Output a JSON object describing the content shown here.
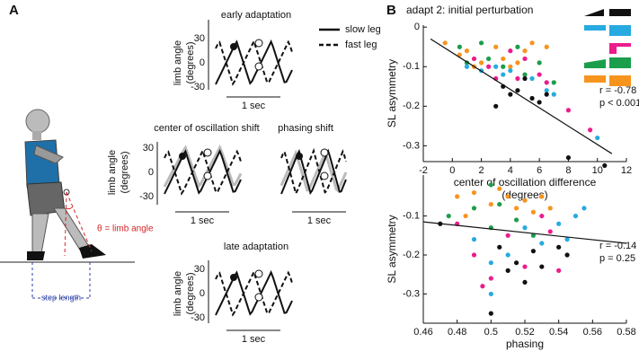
{
  "panel_a": {
    "label": "A",
    "subplots": [
      {
        "title": "early adaptation",
        "axes": true
      },
      {
        "title": "center of oscillation shift",
        "axes": true
      },
      {
        "title": "phasing shift",
        "axes": false
      },
      {
        "title": "late adaptation",
        "axes": true
      }
    ],
    "legend": [
      "slow leg",
      "fast leg"
    ],
    "ylabel": [
      "limb angle",
      "(degrees)"
    ],
    "yticks": [
      30,
      0,
      -30
    ],
    "time_label": "1 sec",
    "angle_label": "θ = limb angle",
    "step_label": "step length"
  },
  "chart_data": [
    {
      "type": "scatter",
      "label": "B",
      "title": "adapt 2: initial perturbation",
      "ylabel": "SL asymmetry",
      "xlabel": [
        "center of oscillation difference",
        "(degrees)"
      ],
      "xlim": [
        -2,
        12
      ],
      "xticks": [
        -2,
        0,
        2,
        4,
        6,
        8,
        10,
        12
      ],
      "ylim": [
        -0.34,
        0.005
      ],
      "yticks": [
        0,
        -0.1,
        -0.2,
        -0.3
      ],
      "annotations": [
        "r = -0.78",
        "p < 0.001"
      ],
      "fit": {
        "x": [
          -1.5,
          11
        ],
        "y": [
          -0.03,
          -0.32
        ]
      },
      "series": [
        {
          "color": "#f7941d",
          "x": [
            -0.5,
            0.5,
            1,
            2,
            3,
            3.5,
            4,
            5,
            5.5,
            6.5,
            1.5,
            4.5
          ],
          "values": [
            -0.04,
            -0.07,
            -0.06,
            -0.09,
            -0.05,
            -0.08,
            -0.1,
            -0.06,
            -0.04,
            -0.05,
            -0.1,
            -0.09
          ]
        },
        {
          "color": "#1b9e4b",
          "x": [
            0.5,
            1,
            2,
            2.5,
            3.5,
            4.5,
            5,
            6,
            7
          ],
          "values": [
            -0.05,
            -0.09,
            -0.04,
            -0.08,
            -0.1,
            -0.05,
            -0.12,
            -0.09,
            -0.14
          ]
        },
        {
          "color": "#27aae1",
          "x": [
            1,
            2,
            3,
            4,
            5.5,
            6.5,
            7,
            10,
            3.5
          ],
          "values": [
            -0.1,
            -0.11,
            -0.1,
            -0.11,
            -0.13,
            -0.16,
            -0.17,
            -0.28,
            -0.12
          ]
        },
        {
          "color": "#ec1c8c",
          "x": [
            1.5,
            2.5,
            3,
            4,
            5,
            6,
            6.5,
            8,
            9.5,
            4.5
          ],
          "values": [
            -0.08,
            -0.1,
            -0.13,
            -0.06,
            -0.08,
            -0.12,
            -0.14,
            -0.21,
            -0.26,
            -0.13
          ]
        },
        {
          "color": "#111111",
          "x": [
            3,
            4,
            4.5,
            5,
            6,
            6.5,
            8,
            10.5,
            5.5,
            3.5
          ],
          "values": [
            -0.2,
            -0.17,
            -0.16,
            -0.13,
            -0.19,
            -0.17,
            -0.33,
            -0.35,
            -0.18,
            -0.15
          ]
        }
      ]
    },
    {
      "type": "scatter",
      "ylabel": "SL asymmetry",
      "xlabel": [
        "phasing"
      ],
      "xlim": [
        0.46,
        0.58
      ],
      "xticks": [
        0.46,
        0.48,
        0.5,
        0.52,
        0.54,
        0.56,
        0.58
      ],
      "ylim": [
        -0.375,
        0.005
      ],
      "yticks": [
        -0.1,
        -0.2,
        -0.3
      ],
      "annotations": [
        "r = -0.14",
        "p = 0.25"
      ],
      "fit": {
        "x": [
          0.46,
          0.58
        ],
        "y": [
          -0.115,
          -0.17
        ]
      },
      "series": [
        {
          "color": "#f7941d",
          "x": [
            0.48,
            0.49,
            0.5,
            0.505,
            0.51,
            0.515,
            0.52,
            0.525,
            0.53,
            0.535,
            0.485
          ],
          "values": [
            -0.05,
            -0.04,
            -0.07,
            -0.03,
            -0.05,
            -0.08,
            -0.06,
            -0.09,
            -0.05,
            -0.08,
            -0.1
          ]
        },
        {
          "color": "#1b9e4b",
          "x": [
            0.475,
            0.49,
            0.5,
            0.505,
            0.515,
            0.525,
            0.5
          ],
          "values": [
            -0.1,
            -0.08,
            -0.13,
            -0.07,
            -0.11,
            -0.15,
            -0.02
          ]
        },
        {
          "color": "#27aae1",
          "x": [
            0.49,
            0.5,
            0.51,
            0.52,
            0.53,
            0.54,
            0.545,
            0.55,
            0.555,
            0.5
          ],
          "values": [
            -0.16,
            -0.3,
            -0.2,
            -0.13,
            -0.17,
            -0.12,
            -0.16,
            -0.1,
            -0.08,
            -0.22
          ]
        },
        {
          "color": "#ec1c8c",
          "x": [
            0.48,
            0.49,
            0.5,
            0.51,
            0.52,
            0.53,
            0.54,
            0.535,
            0.495
          ],
          "values": [
            -0.12,
            -0.2,
            -0.26,
            -0.15,
            -0.23,
            -0.1,
            -0.24,
            -0.14,
            -0.28
          ]
        },
        {
          "color": "#111111",
          "x": [
            0.47,
            0.5,
            0.505,
            0.515,
            0.52,
            0.525,
            0.53,
            0.54,
            0.545,
            0.51
          ],
          "values": [
            -0.12,
            -0.35,
            -0.18,
            -0.22,
            -0.27,
            -0.19,
            -0.23,
            -0.18,
            -0.2,
            -0.24
          ]
        }
      ]
    }
  ]
}
